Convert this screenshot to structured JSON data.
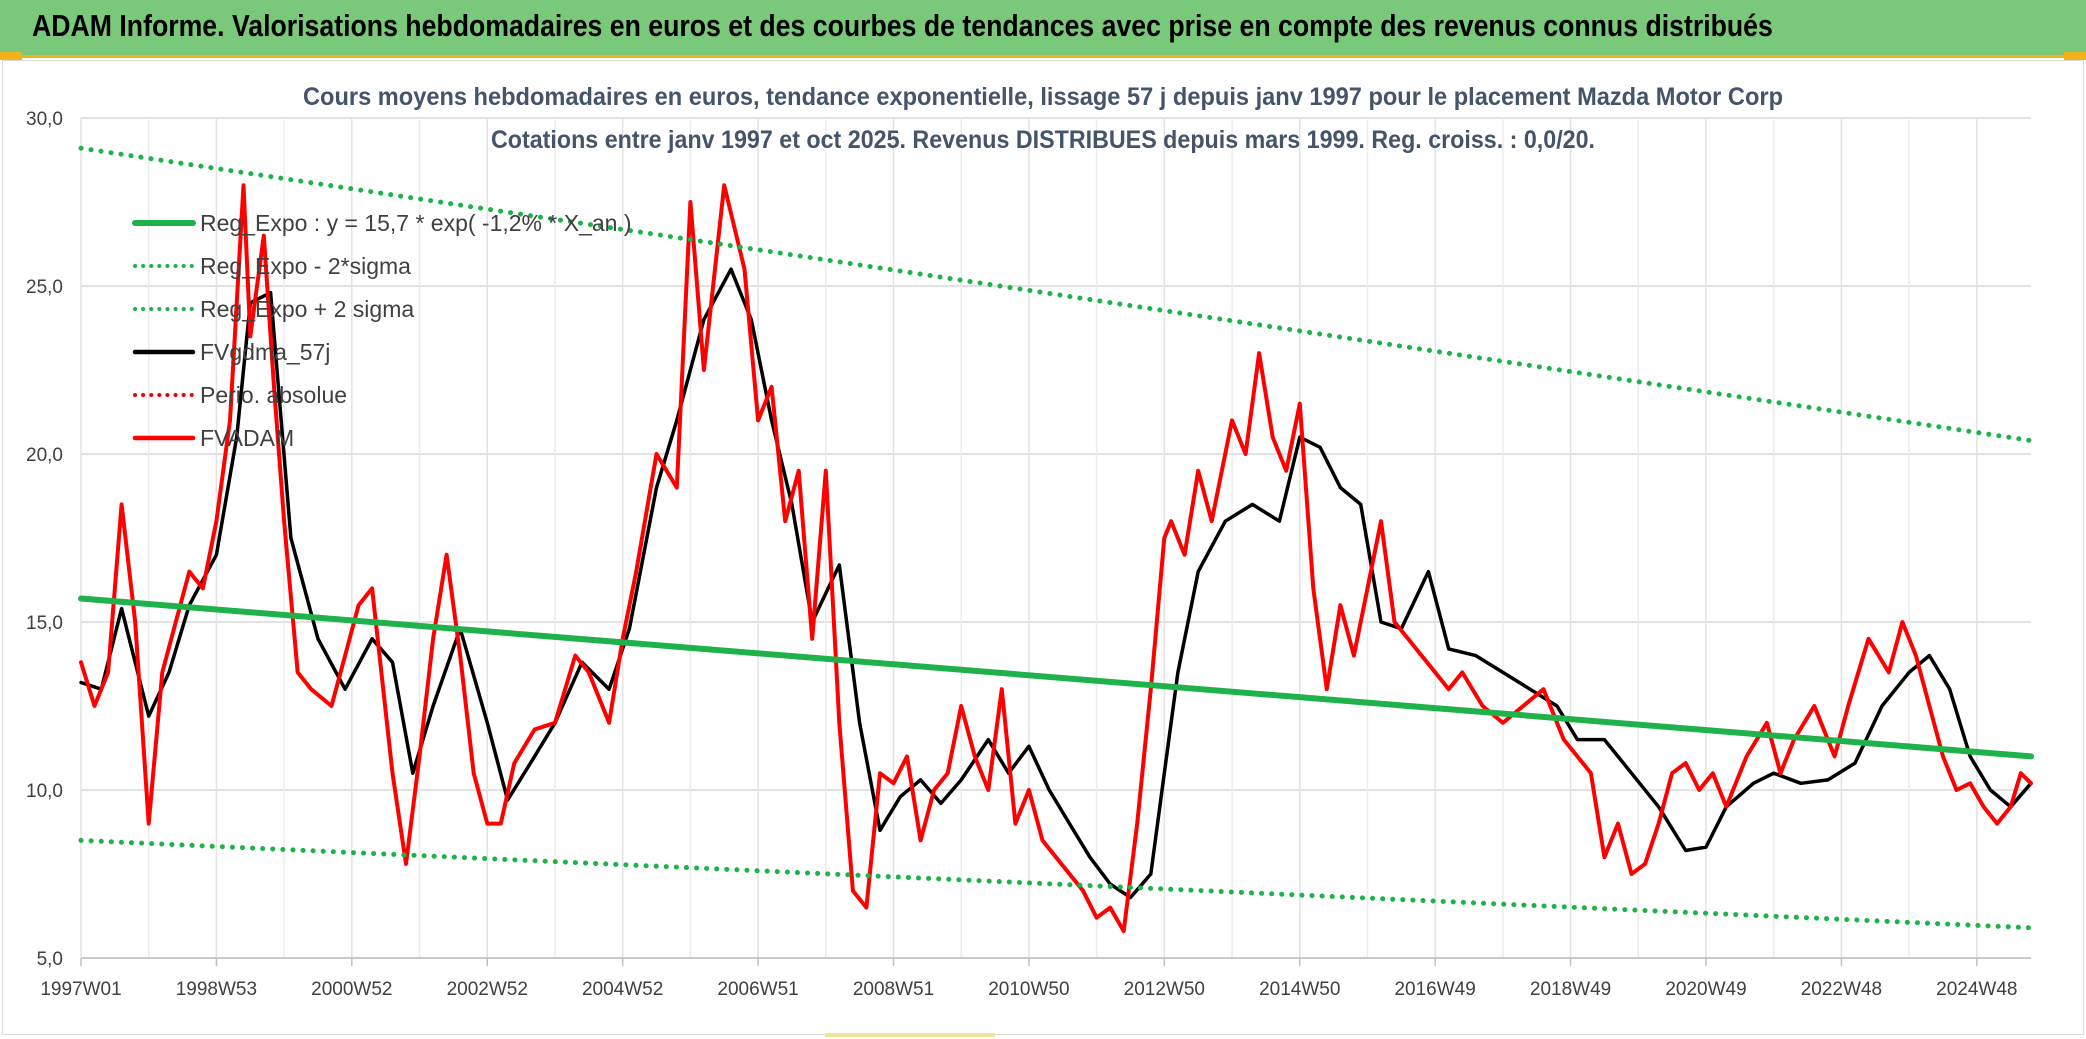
{
  "header": {
    "banner_title": "ADAM Informe. Valorisations hebdomadaires en euros et des courbes de tendances avec prise en compte des revenus connus distribués",
    "banner_color": "#7ac87a",
    "accent_color": "#f1b31c"
  },
  "chart_data": {
    "type": "line",
    "title": "Cours moyens hebdomadaires en euros, tendance exponentielle, lissage 57 j depuis janv 1997 pour le placement Mazda Motor Corp",
    "subtitle": "Cotations entre janv 1997 et oct 2025. Revenus DISTRIBUES depuis mars 1999. Reg. croiss. : 0,0/20.",
    "xlabel": "",
    "ylabel": "",
    "ylim": [
      5,
      30
    ],
    "x_range": [
      1997.0,
      2025.8
    ],
    "y_ticks": [
      "5,0",
      "10,0",
      "15,0",
      "20,0",
      "25,0",
      "30,0"
    ],
    "x_ticks": [
      {
        "label": "1997W01",
        "t": 1997.0
      },
      {
        "label": "1998W53",
        "t": 1999.0
      },
      {
        "label": "2000W52",
        "t": 2001.0
      },
      {
        "label": "2002W52",
        "t": 2003.0
      },
      {
        "label": "2004W52",
        "t": 2005.0
      },
      {
        "label": "2006W51",
        "t": 2007.0
      },
      {
        "label": "2008W51",
        "t": 2009.0
      },
      {
        "label": "2010W50",
        "t": 2011.0
      },
      {
        "label": "2012W50",
        "t": 2013.0
      },
      {
        "label": "2014W50",
        "t": 2015.0
      },
      {
        "label": "2016W49",
        "t": 2017.0
      },
      {
        "label": "2018W49",
        "t": 2019.0
      },
      {
        "label": "2020W49",
        "t": 2021.0
      },
      {
        "label": "2022W48",
        "t": 2023.0
      },
      {
        "label": "2024W48",
        "t": 2025.0
      }
    ],
    "grid": true,
    "legend_position": "top-left",
    "series": [
      {
        "name": "Reg_Expo : y = 15,7 * exp( -1,2% * X_an )",
        "color": "#1fb24a",
        "style": "solid",
        "x": [
          1997.0,
          2025.8
        ],
        "values": [
          15.7,
          11.0
        ]
      },
      {
        "name": "Reg_Expo - 2*sigma",
        "color": "#1fb24a",
        "style": "dotted",
        "x": [
          1997.0,
          2025.8
        ],
        "values": [
          8.5,
          5.9
        ]
      },
      {
        "name": "Reg_Expo + 2 sigma",
        "color": "#1fb24a",
        "style": "dotted",
        "x": [
          1997.0,
          2025.8
        ],
        "values": [
          29.1,
          20.4
        ]
      },
      {
        "name": "FVgdma_57j",
        "color": "#000000",
        "style": "solid",
        "x": [
          1997.0,
          1997.3,
          1997.6,
          1998.0,
          1998.3,
          1998.6,
          1999.0,
          1999.3,
          1999.5,
          1999.8,
          2000.1,
          2000.5,
          2000.9,
          2001.3,
          2001.6,
          2001.9,
          2002.2,
          2002.6,
          2003.0,
          2003.3,
          2003.7,
          2004.0,
          2004.4,
          2004.8,
          2005.1,
          2005.5,
          2005.8,
          2006.2,
          2006.6,
          2006.9,
          2007.2,
          2007.5,
          2007.8,
          2008.2,
          2008.5,
          2008.8,
          2009.1,
          2009.4,
          2009.7,
          2010.0,
          2010.4,
          2010.7,
          2011.0,
          2011.3,
          2011.6,
          2011.9,
          2012.2,
          2012.5,
          2012.8,
          2013.0,
          2013.2,
          2013.5,
          2013.9,
          2014.3,
          2014.7,
          2015.0,
          2015.3,
          2015.6,
          2015.9,
          2016.2,
          2016.5,
          2016.9,
          2017.2,
          2017.6,
          2018.0,
          2018.4,
          2018.8,
          2019.1,
          2019.5,
          2019.9,
          2020.3,
          2020.7,
          2021.0,
          2021.3,
          2021.7,
          2022.0,
          2022.4,
          2022.8,
          2023.2,
          2023.6,
          2024.0,
          2024.3,
          2024.6,
          2024.9,
          2025.2,
          2025.5,
          2025.8
        ],
        "values": [
          13.2,
          13.0,
          15.4,
          12.2,
          13.5,
          15.5,
          17.0,
          20.5,
          24.5,
          24.8,
          17.5,
          14.5,
          13.0,
          14.5,
          13.8,
          10.5,
          12.5,
          14.8,
          12.0,
          9.7,
          11.0,
          12.0,
          13.8,
          13.0,
          14.8,
          19.0,
          21.0,
          24.0,
          25.5,
          24.0,
          21.0,
          18.5,
          15.0,
          16.7,
          12.0,
          8.8,
          9.8,
          10.3,
          9.6,
          10.3,
          11.5,
          10.5,
          11.3,
          10.0,
          9.0,
          8.0,
          7.2,
          6.8,
          7.5,
          10.5,
          13.5,
          16.5,
          18.0,
          18.5,
          18.0,
          20.5,
          20.2,
          19.0,
          18.5,
          15.0,
          14.8,
          16.5,
          14.2,
          14.0,
          13.5,
          13.0,
          12.5,
          11.5,
          11.5,
          10.5,
          9.5,
          8.2,
          8.3,
          9.5,
          10.2,
          10.5,
          10.2,
          10.3,
          10.8,
          12.5,
          13.5,
          14.0,
          13.0,
          11.0,
          10.0,
          9.5,
          10.2
        ]
      },
      {
        "name": "Perio. absolue",
        "color": "#e30613",
        "style": "dotted",
        "x": [],
        "values": []
      },
      {
        "name": "FVADAM",
        "color": "#ff0000",
        "style": "solid",
        "x": [
          1997.0,
          1997.2,
          1997.4,
          1997.6,
          1997.8,
          1998.0,
          1998.2,
          1998.4,
          1998.6,
          1998.8,
          1999.0,
          1999.2,
          1999.4,
          1999.5,
          1999.7,
          1999.85,
          2000.0,
          2000.2,
          2000.4,
          2000.7,
          2000.9,
          2001.1,
          2001.3,
          2001.6,
          2001.8,
          2002.0,
          2002.2,
          2002.4,
          2002.6,
          2002.8,
          2003.0,
          2003.2,
          2003.4,
          2003.7,
          2004.0,
          2004.3,
          2004.5,
          2004.8,
          2005.0,
          2005.2,
          2005.5,
          2005.8,
          2006.0,
          2006.2,
          2006.5,
          2006.8,
          2007.0,
          2007.2,
          2007.4,
          2007.6,
          2007.8,
          2008.0,
          2008.2,
          2008.4,
          2008.6,
          2008.8,
          2009.0,
          2009.2,
          2009.4,
          2009.6,
          2009.8,
          2010.0,
          2010.2,
          2010.4,
          2010.6,
          2010.8,
          2011.0,
          2011.2,
          2011.4,
          2011.6,
          2011.8,
          2012.0,
          2012.2,
          2012.4,
          2012.6,
          2012.8,
          2013.0,
          2013.1,
          2013.3,
          2013.5,
          2013.7,
          2014.0,
          2014.2,
          2014.4,
          2014.6,
          2014.8,
          2015.0,
          2015.2,
          2015.4,
          2015.6,
          2015.8,
          2016.0,
          2016.2,
          2016.4,
          2016.6,
          2016.8,
          2017.0,
          2017.2,
          2017.4,
          2017.7,
          2018.0,
          2018.3,
          2018.6,
          2018.9,
          2019.1,
          2019.3,
          2019.5,
          2019.7,
          2019.9,
          2020.1,
          2020.3,
          2020.5,
          2020.7,
          2020.9,
          2021.1,
          2021.3,
          2021.6,
          2021.9,
          2022.1,
          2022.3,
          2022.6,
          2022.9,
          2023.1,
          2023.4,
          2023.7,
          2023.9,
          2024.1,
          2024.3,
          2024.5,
          2024.7,
          2024.9,
          2025.1,
          2025.3,
          2025.5,
          2025.65,
          2025.8
        ],
        "values": [
          13.8,
          12.5,
          13.5,
          18.5,
          15.0,
          9.0,
          13.5,
          15.0,
          16.5,
          16.0,
          18.0,
          21.0,
          28.0,
          23.5,
          26.5,
          22.0,
          18.0,
          13.5,
          13.0,
          12.5,
          14.0,
          15.5,
          16.0,
          10.5,
          7.8,
          11.0,
          14.5,
          17.0,
          14.0,
          10.5,
          9.0,
          9.0,
          10.8,
          11.8,
          12.0,
          14.0,
          13.5,
          12.0,
          14.5,
          16.5,
          20.0,
          19.0,
          27.5,
          22.5,
          28.0,
          25.5,
          21.0,
          22.0,
          18.0,
          19.5,
          14.5,
          19.5,
          12.0,
          7.0,
          6.5,
          10.5,
          10.2,
          11.0,
          8.5,
          10.0,
          10.5,
          12.5,
          11.0,
          10.0,
          13.0,
          9.0,
          10.0,
          8.5,
          8.0,
          7.5,
          7.0,
          6.2,
          6.5,
          5.8,
          9.0,
          13.0,
          17.5,
          18.0,
          17.0,
          19.5,
          18.0,
          21.0,
          20.0,
          23.0,
          20.5,
          19.5,
          21.5,
          16.0,
          13.0,
          15.5,
          14.0,
          16.0,
          18.0,
          15.0,
          14.5,
          14.0,
          13.5,
          13.0,
          13.5,
          12.5,
          12.0,
          12.5,
          13.0,
          11.5,
          11.0,
          10.5,
          8.0,
          9.0,
          7.5,
          7.8,
          9.0,
          10.5,
          10.8,
          10.0,
          10.5,
          9.5,
          11.0,
          12.0,
          10.5,
          11.5,
          12.5,
          11.0,
          12.5,
          14.5,
          13.5,
          15.0,
          14.0,
          12.5,
          11.0,
          10.0,
          10.2,
          9.5,
          9.0,
          9.5,
          10.5,
          10.2
        ]
      }
    ]
  }
}
